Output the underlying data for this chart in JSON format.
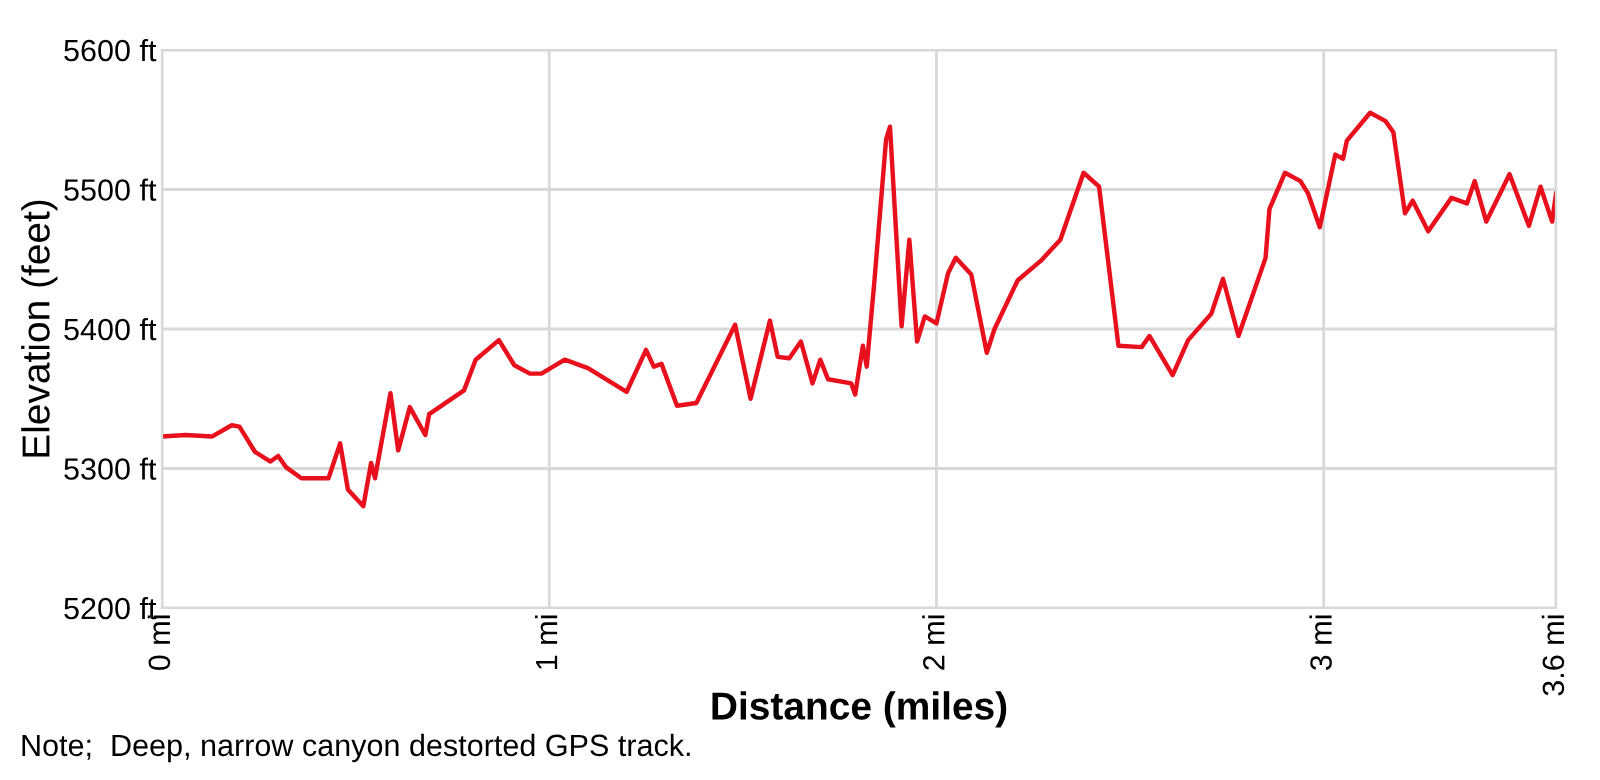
{
  "chart_data": {
    "type": "line",
    "xlabel": "Distance (miles)",
    "ylabel": "Elevation (feet)",
    "annotations": [
      "Note;  Deep, narrow canyon destorted GPS track."
    ],
    "xlim": [
      0,
      3.6
    ],
    "ylim": [
      5200,
      5600
    ],
    "xticks": [
      {
        "value": 0,
        "label": "0 mi"
      },
      {
        "value": 1,
        "label": "1 mi"
      },
      {
        "value": 2,
        "label": "2 mi"
      },
      {
        "value": 3,
        "label": "3 mi"
      },
      {
        "value": 3.6,
        "label": "3.6 mi"
      }
    ],
    "yticks": [
      {
        "value": 5200,
        "label": "5200 ft"
      },
      {
        "value": 5300,
        "label": "5300 ft"
      },
      {
        "value": 5400,
        "label": "5400 ft"
      },
      {
        "value": 5500,
        "label": "5500 ft"
      },
      {
        "value": 5600,
        "label": "5600 ft"
      }
    ],
    "grid": true,
    "legend": false,
    "marker": "none",
    "line_style": "solid",
    "series": [
      {
        "color": "#e8101c",
        "x": [
          0,
          0.06,
          0.13,
          0.18,
          0.2,
          0.24,
          0.28,
          0.3,
          0.32,
          0.36,
          0.43,
          0.46,
          0.48,
          0.52,
          0.54,
          0.55,
          0.59,
          0.61,
          0.64,
          0.68,
          0.69,
          0.78,
          0.81,
          0.87,
          0.91,
          0.95,
          0.98,
          1.04,
          1.1,
          1.2,
          1.25,
          1.27,
          1.29,
          1.33,
          1.38,
          1.48,
          1.52,
          1.57,
          1.59,
          1.62,
          1.65,
          1.68,
          1.7,
          1.72,
          1.78,
          1.79,
          1.81,
          1.82,
          1.84,
          1.87,
          1.88,
          1.91,
          1.93,
          1.95,
          1.97,
          2.0,
          2.03,
          2.05,
          2.09,
          2.13,
          2.15,
          2.21,
          2.27,
          2.32,
          2.38,
          2.42,
          2.47,
          2.53,
          2.55,
          2.61,
          2.65,
          2.71,
          2.74,
          2.78,
          2.85,
          2.86,
          2.9,
          2.94,
          2.96,
          2.99,
          3.03,
          3.05,
          3.06,
          3.12,
          3.16,
          3.18,
          3.21,
          3.23,
          3.27,
          3.33,
          3.37,
          3.39,
          3.42,
          3.48,
          3.53,
          3.56,
          3.59,
          3.6
        ],
        "values": [
          5323,
          5324,
          5323,
          5331,
          5330,
          5312,
          5305,
          5309,
          5301,
          5293,
          5293,
          5318,
          5285,
          5273,
          5304,
          5293,
          5354,
          5313,
          5344,
          5324,
          5339,
          5356,
          5378,
          5392,
          5374,
          5368,
          5368,
          5378,
          5372,
          5355,
          5385,
          5373,
          5375,
          5345,
          5347,
          5403,
          5350,
          5406,
          5380,
          5379,
          5391,
          5361,
          5378,
          5364,
          5361,
          5353,
          5388,
          5373,
          5435,
          5536,
          5545,
          5402,
          5464,
          5391,
          5409,
          5404,
          5440,
          5451,
          5439,
          5383,
          5400,
          5435,
          5449,
          5464,
          5512,
          5502,
          5388,
          5387,
          5395,
          5367,
          5392,
          5411,
          5436,
          5395,
          5451,
          5486,
          5512,
          5506,
          5497,
          5473,
          5525,
          5522,
          5535,
          5555,
          5549,
          5541,
          5483,
          5492,
          5470,
          5494,
          5490,
          5506,
          5477,
          5511,
          5474,
          5502,
          5477,
          5497
        ]
      }
    ]
  }
}
